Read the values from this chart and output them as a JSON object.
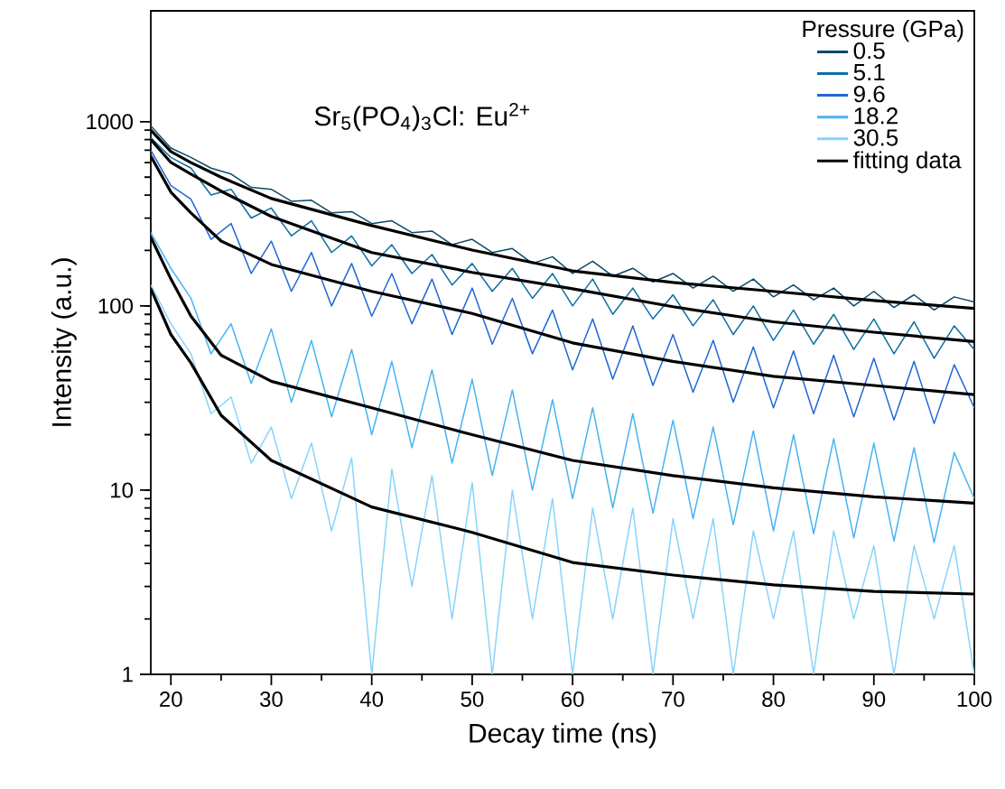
{
  "chart_data": {
    "type": "line",
    "xlabel": "Decay time (ns)",
    "ylabel": "Intensity (a.u.)",
    "legend_title": "Pressure (GPa)",
    "annotations": [
      "Sr$_{5}$(PO$_{4}$)$_{3}$Cl: Eu$^{2+}$"
    ],
    "log": "y",
    "xlim": [
      18,
      100
    ],
    "ylim": [
      1,
      4000
    ],
    "xticks": [
      20,
      30,
      40,
      50,
      60,
      70,
      80,
      90,
      100
    ],
    "yticks": [
      1,
      10,
      100,
      1000
    ],
    "grid": false,
    "legend": "top right",
    "line_style": "solid",
    "x": [
      18,
      20,
      22,
      24,
      26,
      28,
      30,
      32,
      34,
      36,
      38,
      40,
      42,
      44,
      46,
      48,
      50,
      52,
      54,
      56,
      58,
      60,
      62,
      64,
      66,
      68,
      70,
      72,
      74,
      76,
      78,
      80,
      82,
      84,
      86,
      88,
      90,
      92,
      94,
      96,
      98,
      100
    ],
    "series": [
      {
        "name": "0.5",
        "color": "#0b4a6b",
        "values": [
          950,
          720,
          640,
          560,
          520,
          440,
          430,
          370,
          375,
          320,
          325,
          280,
          290,
          250,
          255,
          215,
          230,
          195,
          205,
          170,
          185,
          150,
          175,
          145,
          160,
          135,
          150,
          125,
          145,
          120,
          140,
          112,
          130,
          108,
          125,
          100,
          120,
          98,
          115,
          95,
          112,
          105
        ]
      },
      {
        "name": "5.1",
        "color": "#0e6ea3",
        "values": [
          820,
          640,
          560,
          400,
          430,
          300,
          340,
          240,
          290,
          195,
          240,
          165,
          215,
          150,
          190,
          130,
          170,
          120,
          160,
          110,
          150,
          100,
          140,
          90,
          125,
          85,
          115,
          78,
          108,
          70,
          100,
          65,
          95,
          62,
          90,
          58,
          85,
          55,
          82,
          52,
          78,
          58
        ]
      },
      {
        "name": "9.6",
        "color": "#1f67d6",
        "values": [
          700,
          450,
          380,
          230,
          280,
          150,
          225,
          120,
          195,
          100,
          170,
          88,
          150,
          80,
          140,
          70,
          125,
          62,
          110,
          55,
          95,
          45,
          85,
          40,
          78,
          37,
          70,
          34,
          65,
          30,
          60,
          28,
          57,
          26,
          54,
          25,
          52,
          24,
          50,
          23,
          48,
          28
        ]
      },
      {
        "name": "18.2",
        "color": "#46b3f3",
        "values": [
          250,
          160,
          110,
          55,
          80,
          38,
          75,
          30,
          65,
          25,
          58,
          20,
          50,
          17,
          45,
          14,
          40,
          12,
          35,
          10,
          31,
          9,
          28,
          8,
          26,
          7.5,
          24,
          7,
          22,
          6.5,
          21,
          6,
          20,
          5.8,
          19,
          5.5,
          18,
          5.3,
          17,
          5.2,
          16,
          9
        ]
      },
      {
        "name": "30.5",
        "color": "#88d3fb",
        "values": [
          130,
          80,
          55,
          26,
          32,
          14,
          22,
          9,
          18,
          6,
          15,
          1,
          13,
          3,
          12,
          2,
          11,
          1,
          10,
          2,
          9,
          1,
          8,
          2,
          8,
          1,
          7,
          2,
          7,
          1,
          6,
          2,
          6,
          1,
          6,
          2,
          5,
          1,
          5,
          2,
          5,
          1
        ]
      },
      {
        "name": "fitting data",
        "type": "line",
        "color": "#000000",
        "x": [
          18,
          20,
          22,
          25,
          30,
          40,
          50,
          60,
          70,
          80,
          90,
          100
        ],
        "values": [
          900,
          689,
          600,
          500,
          383,
          273,
          201,
          155,
          134,
          120,
          107,
          97
        ]
      },
      {
        "type": "line",
        "color": "#000000",
        "x": [
          18,
          20,
          22,
          25,
          30,
          40,
          50,
          60,
          70,
          80,
          90,
          100
        ],
        "values": [
          800,
          601,
          520,
          420,
          306,
          195,
          152,
          124,
          99,
          82,
          72,
          64
        ]
      },
      {
        "type": "line",
        "color": "#000000",
        "x": [
          18,
          20,
          22,
          25,
          30,
          40,
          50,
          60,
          70,
          80,
          90,
          100
        ],
        "values": [
          650,
          415,
          320,
          225,
          168,
          120,
          91,
          63,
          50,
          41.5,
          37,
          33
        ]
      },
      {
        "type": "line",
        "color": "#000000",
        "x": [
          18,
          20,
          22,
          25,
          30,
          40,
          50,
          60,
          70,
          80,
          90,
          100
        ],
        "values": [
          236,
          140,
          88,
          54,
          39,
          28,
          20,
          14.5,
          12,
          10.3,
          9.2,
          8.5
        ]
      },
      {
        "type": "line",
        "color": "#000000",
        "x": [
          18,
          20,
          22,
          25,
          30,
          40,
          50,
          60,
          70,
          80,
          90,
          100
        ],
        "values": [
          124,
          70,
          49,
          25.5,
          14.5,
          8.1,
          5.9,
          4.05,
          3.46,
          3.06,
          2.82,
          2.73
        ]
      }
    ]
  }
}
